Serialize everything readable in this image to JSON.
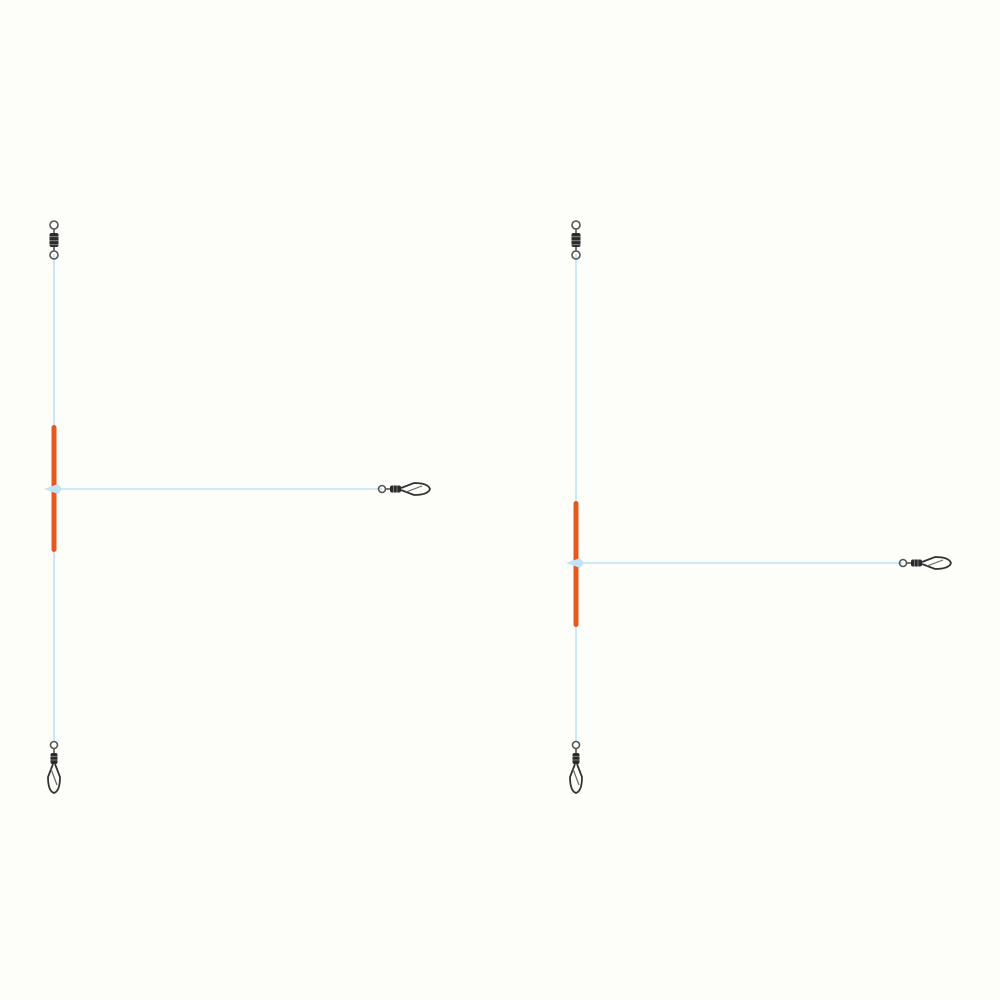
{
  "background_color": "#fdfdf9",
  "colors": {
    "line": "#bfe3f7",
    "tube": "#e8581c",
    "tube_dark": "#c94612",
    "swivel_body": "#2b2b2b",
    "wire": "#555555"
  },
  "rigs": [
    {
      "name": "rig-left",
      "parts": [
        "top-swivel-icon",
        "main-line",
        "orange-tube",
        "branch-line",
        "branch-snap-swivel-icon",
        "bottom-snap-swivel-icon"
      ]
    },
    {
      "name": "rig-right",
      "parts": [
        "top-swivel-icon",
        "main-line",
        "orange-tube",
        "branch-line",
        "branch-snap-swivel-icon",
        "bottom-snap-swivel-icon"
      ]
    }
  ]
}
